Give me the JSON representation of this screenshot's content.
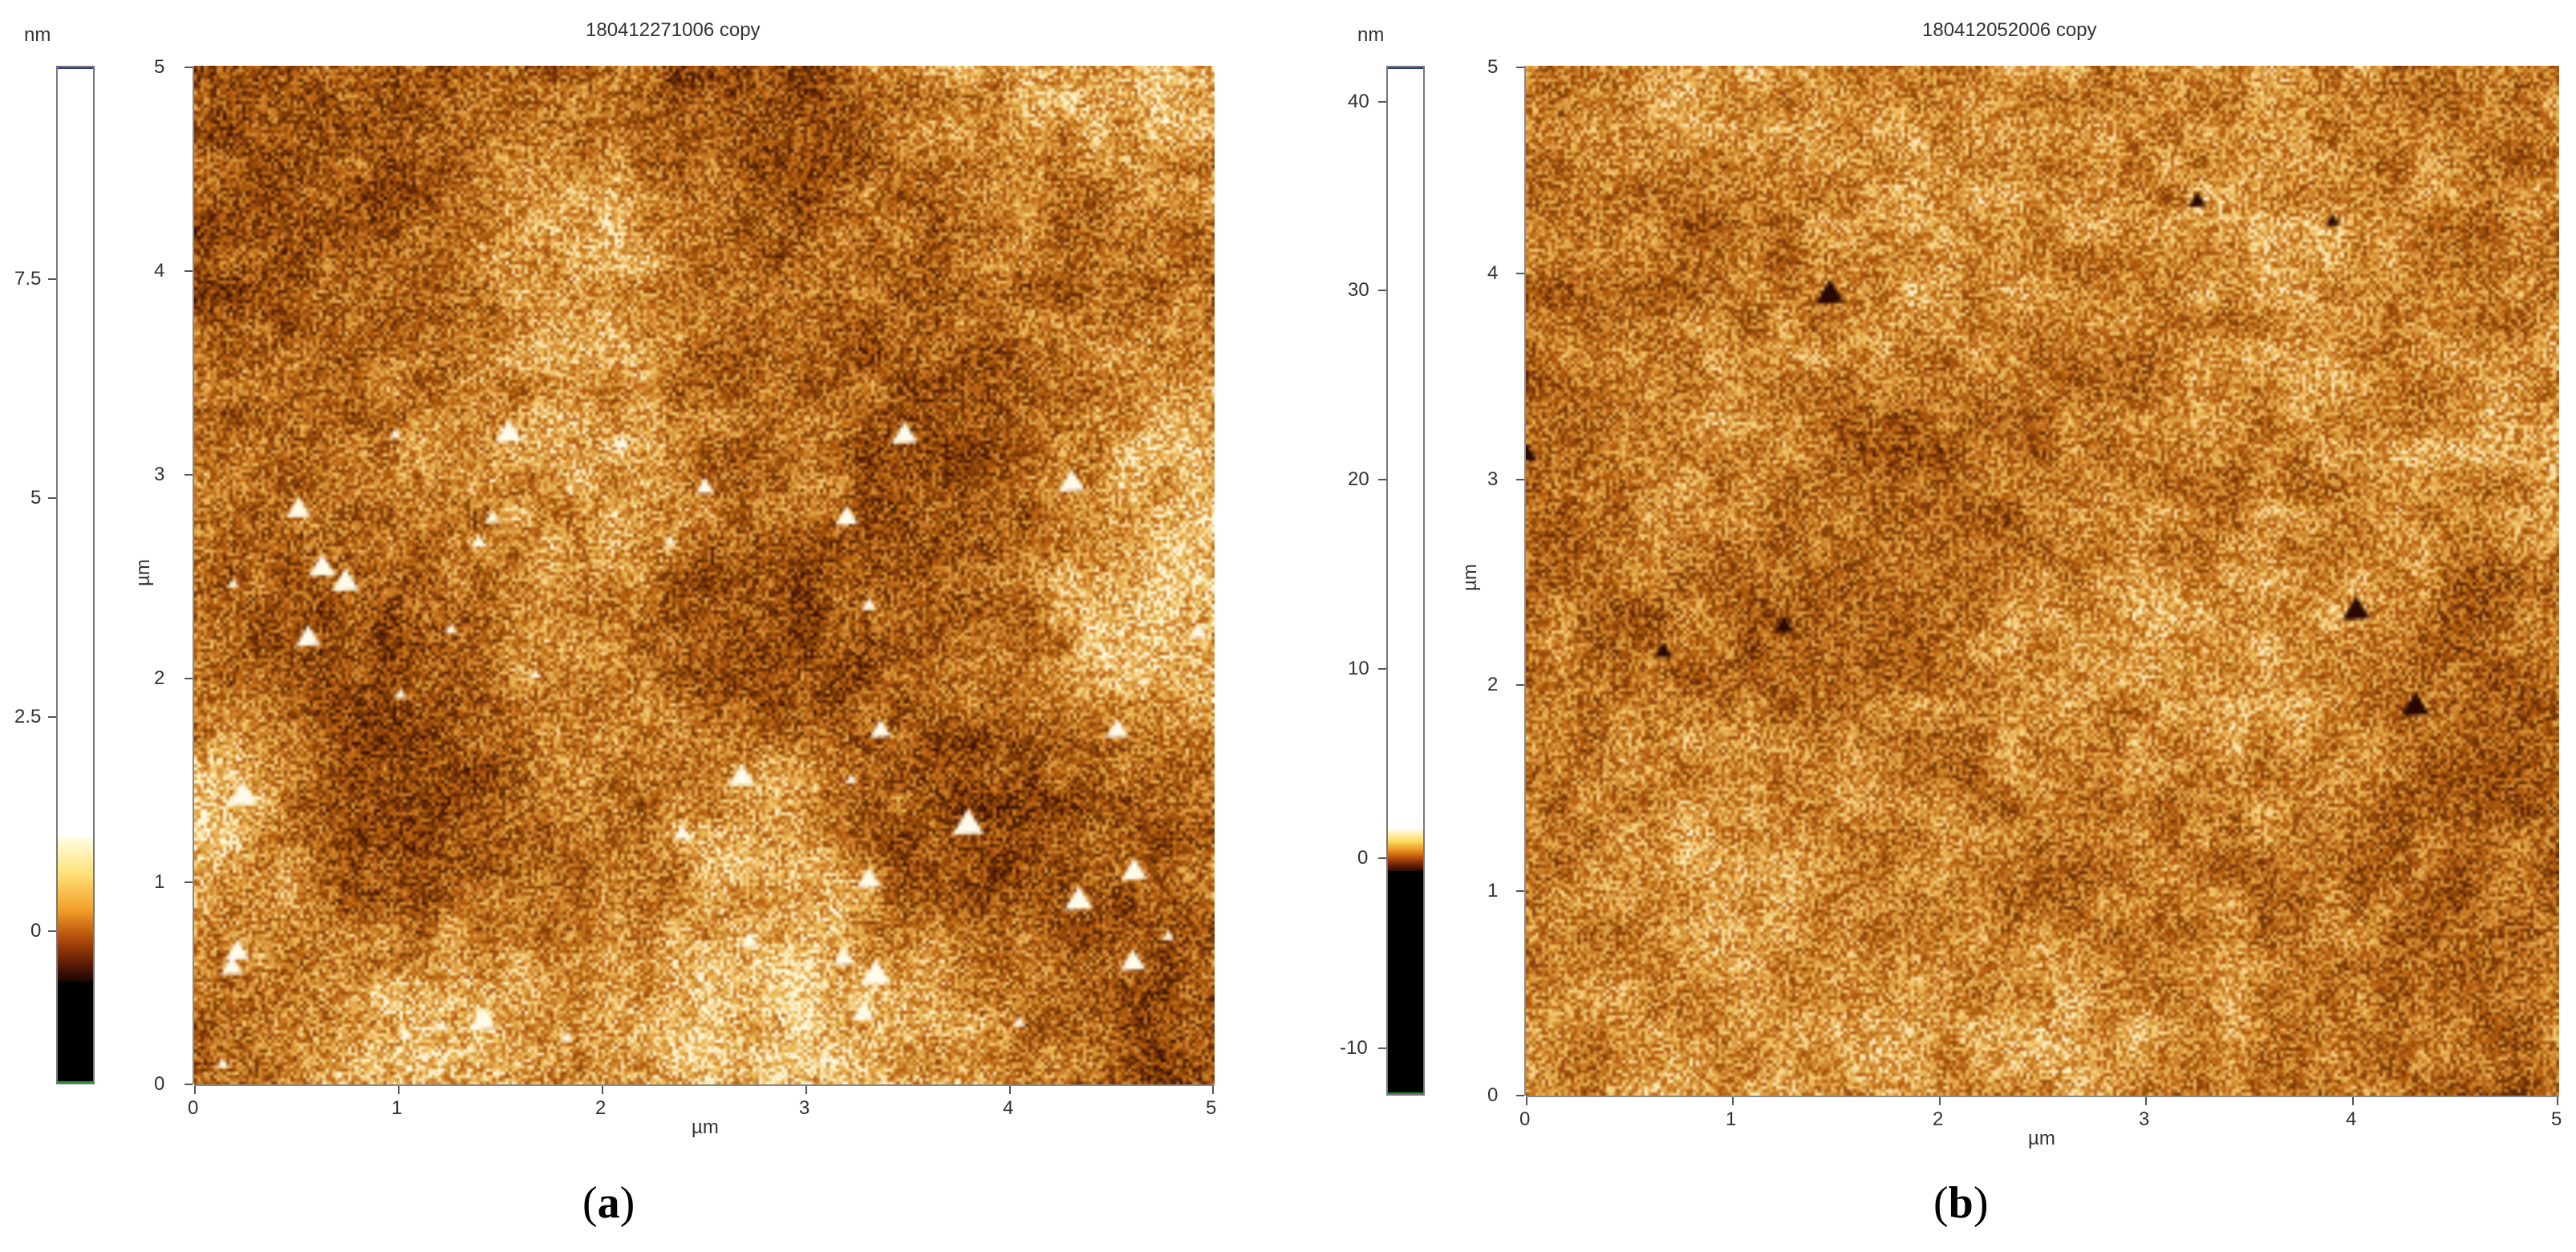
{
  "panels": [
    {
      "id": "a",
      "title": "180412271006 copy",
      "letter": "a",
      "colorbar": {
        "unit": "nm",
        "ticks": [
          "7.5",
          "5",
          "2.5",
          "0"
        ],
        "range": [
          -1.7,
          9.8
        ],
        "bright_above": 1.1,
        "dark_below": -1.0
      },
      "y_ticks": [
        "5",
        "4",
        "3",
        "2",
        "1",
        "0"
      ],
      "x_ticks": [
        "0",
        "1",
        "2",
        "3",
        "4",
        "5"
      ],
      "xlabel": "µm",
      "ylabel": "µm"
    },
    {
      "id": "b",
      "title": "180412052006 copy",
      "letter": "b",
      "colorbar": {
        "unit": "nm",
        "ticks": [
          "40",
          "30",
          "20",
          "10",
          "0",
          "-10"
        ],
        "range": [
          -12.5,
          42.0
        ],
        "bright_above": 1.5,
        "dark_below": -1.8
      },
      "y_ticks": [
        "5",
        "4",
        "3",
        "2",
        "1",
        "0"
      ],
      "x_ticks": [
        "0",
        "1",
        "2",
        "3",
        "4",
        "5"
      ],
      "xlabel": "µm",
      "ylabel": "µm"
    }
  ],
  "colors": {
    "dark": "#3a1000",
    "mid": "#b8600f",
    "light": "#f0c060",
    "white": "#fff8d8"
  }
}
